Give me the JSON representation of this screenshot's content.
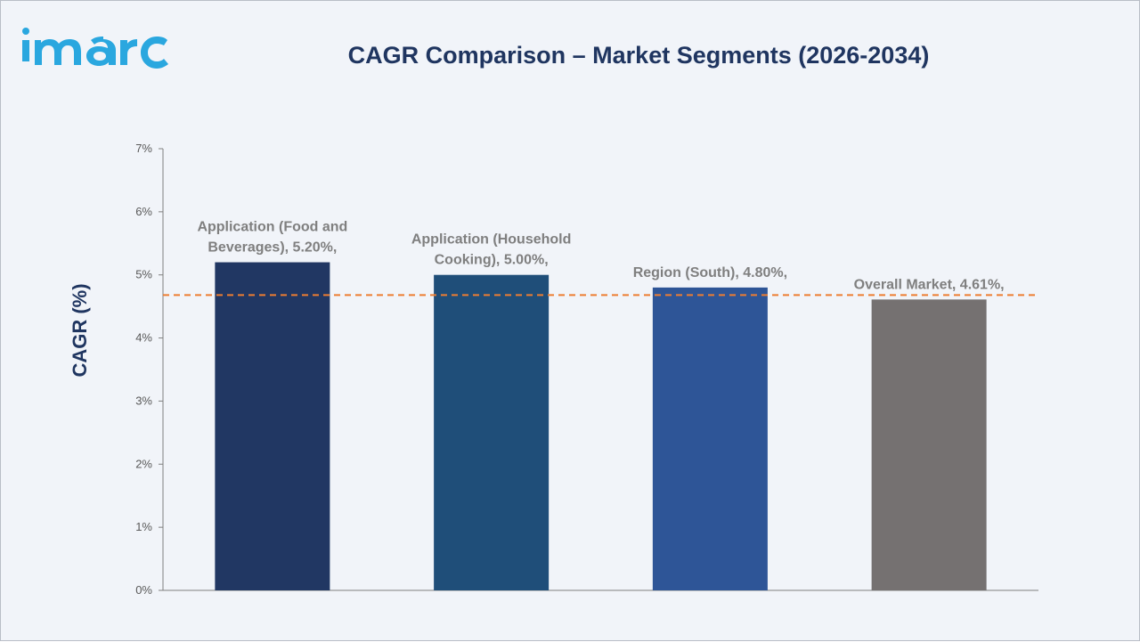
{
  "brand": {
    "logo_text": "imarc",
    "logo_color": "#2aa7df"
  },
  "chart_data": {
    "type": "bar",
    "title": "CAGR Comparison – Market Segments (2026-2034)",
    "xlabel": "",
    "ylabel": "CAGR (%)",
    "categories": [
      "Application (Food and Beverages)",
      "Application (Household Cooking)",
      "Region (South)",
      "Overall Market"
    ],
    "values": [
      5.2,
      5.0,
      4.8,
      4.61
    ],
    "data_labels": [
      [
        "Application (Food and",
        "Beverages), 5.20%,"
      ],
      [
        "Application (Household",
        "Cooking), 5.00%,"
      ],
      [
        "Region (South), 4.80%,"
      ],
      [
        "Overall Market, 4.61%,"
      ]
    ],
    "bar_colors": [
      "#213763",
      "#1f4e79",
      "#2e5597",
      "#757171"
    ],
    "ylim": [
      0,
      7
    ],
    "yticks": [
      "0%",
      "1%",
      "2%",
      "3%",
      "4%",
      "5%",
      "6%",
      "7%"
    ],
    "reference_line": {
      "value": 4.68,
      "color": "#ed7d31",
      "style": "dashed"
    },
    "grid": false,
    "legend": "none"
  }
}
